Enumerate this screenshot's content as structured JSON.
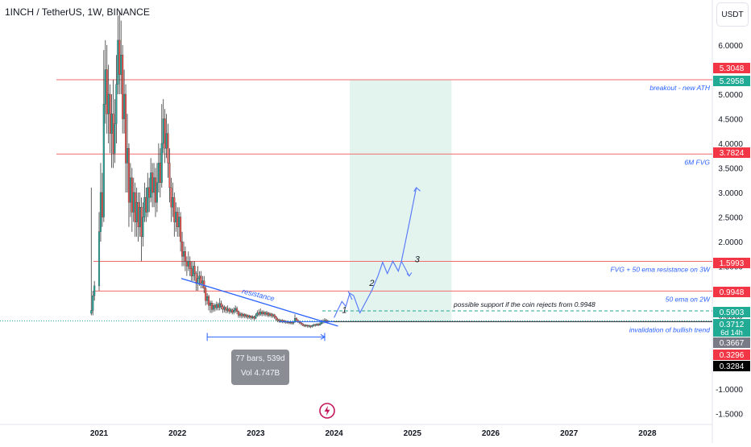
{
  "header": {
    "title": "1INCH / TetherUS, 1W, BINANCE",
    "currency_label": "USDT"
  },
  "chart_data": {
    "type": "candlestick",
    "symbol": "1INCH / TetherUS",
    "interval": "1W",
    "exchange": "BINANCE",
    "y_ticks": [
      "6.0000",
      "5.5000",
      "5.0000",
      "4.5000",
      "4.0000",
      "3.5000",
      "3.0000",
      "2.5000",
      "2.0000",
      "1.5000",
      "1.0000",
      "0.5000",
      "0.0000",
      "-0.5000",
      "-1.0000",
      "-1.5000"
    ],
    "x_ticks": [
      "2021",
      "2022",
      "2023",
      "2024",
      "2025",
      "2026",
      "2027",
      "2028"
    ],
    "ylim": [
      -1.7,
      6.7
    ],
    "horizontal_levels": [
      {
        "value": 5.2958,
        "label": "breakout - new ATH"
      },
      {
        "value": 3.7824,
        "label": "6M FVG"
      },
      {
        "value": 1.5993,
        "label": "FVG + 50 ema resistance on 3W"
      },
      {
        "value": 0.9948,
        "label": "50 ema on 2W"
      },
      {
        "value": 0.5903,
        "label": "possible support if the coin rejects from 0.9948"
      },
      {
        "value": 0.3712,
        "label": "invalidation of bullish trend"
      }
    ],
    "price_tags": [
      {
        "text": "5.3048",
        "value": 5.3048,
        "color": "#f23645"
      },
      {
        "text": "5.2958",
        "value": 5.2958,
        "color": "#22ab94"
      },
      {
        "text": "3.7824",
        "value": 3.7824,
        "color": "#f23645"
      },
      {
        "text": "1.5993",
        "value": 1.5993,
        "color": "#f23645"
      },
      {
        "text": "0.9948",
        "value": 0.9948,
        "color": "#f23645"
      },
      {
        "text": "0.5903",
        "value": 0.5903,
        "color": "#22ab94"
      },
      {
        "text": "0.3712",
        "value": 0.3712,
        "color": "#22ab94",
        "sub": "6d 14h"
      },
      {
        "text": "0.3667",
        "value": 0.3667,
        "color": "#787b86"
      },
      {
        "text": "0.3296",
        "value": 0.3296,
        "color": "#f23645"
      },
      {
        "text": "0.3284",
        "value": 0.3284,
        "color": "#000000"
      }
    ],
    "resistance_label": "resistance",
    "wave_labels": [
      "1",
      "2",
      "3"
    ],
    "projection_zone": {
      "x_start": 2024.2,
      "x_end": 2025.5
    },
    "measure": {
      "bars_text": "77 bars, 539d",
      "vol_text": "Vol 4.747B"
    },
    "candles": [
      [
        2020.9,
        0.54,
        0.6,
        0.5,
        3.1
      ],
      [
        2020.92,
        0.6,
        0.9,
        0.5,
        1.0
      ],
      [
        2020.94,
        0.9,
        1.1,
        0.8,
        1.2
      ],
      [
        2021.0,
        1.1,
        2.2,
        1.0,
        2.6
      ],
      [
        2021.02,
        2.2,
        3.0,
        2.0,
        3.6
      ],
      [
        2021.04,
        3.0,
        2.5,
        2.3,
        3.4
      ],
      [
        2021.06,
        2.5,
        4.8,
        2.4,
        5.9
      ],
      [
        2021.08,
        4.8,
        5.5,
        4.4,
        6.1
      ],
      [
        2021.1,
        5.5,
        4.6,
        4.2,
        6.0
      ],
      [
        2021.12,
        4.6,
        5.0,
        4.0,
        5.6
      ],
      [
        2021.14,
        5.0,
        4.2,
        3.8,
        5.2
      ],
      [
        2021.16,
        4.2,
        4.6,
        3.5,
        5.0
      ],
      [
        2021.18,
        4.6,
        3.8,
        3.5,
        5.3
      ],
      [
        2021.2,
        3.8,
        4.4,
        3.6,
        4.9
      ],
      [
        2021.22,
        4.4,
        5.2,
        4.0,
        5.8
      ],
      [
        2021.24,
        5.2,
        6.1,
        5.0,
        6.6
      ],
      [
        2021.26,
        6.1,
        5.4,
        5.0,
        6.7
      ],
      [
        2021.28,
        5.4,
        5.8,
        5.0,
        6.5
      ],
      [
        2021.3,
        5.8,
        4.5,
        4.2,
        6.0
      ],
      [
        2021.32,
        4.5,
        5.0,
        4.2,
        5.5
      ],
      [
        2021.34,
        5.0,
        3.6,
        3.0,
        5.2
      ],
      [
        2021.36,
        3.6,
        3.9,
        3.0,
        4.6
      ],
      [
        2021.38,
        3.9,
        2.8,
        2.3,
        4.0
      ],
      [
        2021.4,
        2.8,
        3.3,
        2.5,
        3.6
      ],
      [
        2021.42,
        3.3,
        2.6,
        2.2,
        3.5
      ],
      [
        2021.44,
        2.6,
        3.0,
        2.4,
        3.3
      ],
      [
        2021.46,
        3.0,
        2.4,
        2.1,
        3.2
      ],
      [
        2021.48,
        2.4,
        2.8,
        2.1,
        3.1
      ],
      [
        2021.5,
        2.8,
        2.3,
        2.0,
        3.0
      ],
      [
        2021.52,
        2.3,
        2.7,
        2.1,
        3.0
      ],
      [
        2021.54,
        2.7,
        2.1,
        1.6,
        2.9
      ],
      [
        2021.56,
        2.1,
        2.5,
        1.9,
        2.8
      ],
      [
        2021.58,
        2.5,
        2.9,
        2.4,
        3.2
      ],
      [
        2021.6,
        2.9,
        2.6,
        2.4,
        3.1
      ],
      [
        2021.62,
        2.6,
        3.1,
        2.5,
        3.4
      ],
      [
        2021.64,
        3.1,
        2.9,
        2.6,
        3.3
      ],
      [
        2021.66,
        2.9,
        3.4,
        2.8,
        3.7
      ],
      [
        2021.68,
        3.4,
        3.0,
        2.7,
        3.6
      ],
      [
        2021.7,
        3.0,
        3.3,
        2.7,
        3.6
      ],
      [
        2021.72,
        3.3,
        2.8,
        2.5,
        3.5
      ],
      [
        2021.74,
        2.8,
        3.2,
        2.6,
        3.6
      ],
      [
        2021.76,
        3.2,
        3.6,
        3.0,
        4.0
      ],
      [
        2021.78,
        3.6,
        3.2,
        2.9,
        3.9
      ],
      [
        2021.8,
        3.2,
        4.0,
        3.1,
        4.8
      ],
      [
        2021.82,
        4.0,
        4.5,
        3.8,
        4.9
      ],
      [
        2021.84,
        4.5,
        3.9,
        3.6,
        4.7
      ],
      [
        2021.86,
        3.9,
        4.2,
        3.7,
        4.6
      ],
      [
        2021.88,
        4.2,
        3.6,
        3.3,
        4.4
      ],
      [
        2021.9,
        3.6,
        3.1,
        2.8,
        3.9
      ],
      [
        2021.92,
        3.1,
        2.7,
        2.4,
        3.3
      ],
      [
        2021.94,
        2.7,
        2.9,
        2.5,
        3.2
      ],
      [
        2021.96,
        2.9,
        2.4,
        2.1,
        3.0
      ],
      [
        2021.98,
        2.4,
        2.6,
        2.2,
        2.8
      ],
      [
        2022.0,
        2.6,
        2.3,
        2.1,
        2.7
      ],
      [
        2022.02,
        2.3,
        2.5,
        2.1,
        2.7
      ],
      [
        2022.04,
        2.5,
        2.0,
        1.8,
        2.6
      ],
      [
        2022.06,
        2.0,
        1.7,
        1.5,
        2.2
      ],
      [
        2022.08,
        1.7,
        1.8,
        1.5,
        2.0
      ],
      [
        2022.1,
        1.8,
        1.6,
        1.4,
        1.9
      ],
      [
        2022.12,
        1.6,
        1.5,
        1.3,
        1.7
      ],
      [
        2022.14,
        1.5,
        1.6,
        1.4,
        1.8
      ],
      [
        2022.16,
        1.6,
        1.45,
        1.3,
        1.7
      ],
      [
        2022.18,
        1.45,
        1.3,
        1.2,
        1.6
      ],
      [
        2022.2,
        1.3,
        1.5,
        1.2,
        1.6
      ],
      [
        2022.22,
        1.5,
        1.35,
        1.2,
        1.6
      ],
      [
        2022.24,
        1.35,
        1.15,
        1.0,
        1.4
      ],
      [
        2022.26,
        1.15,
        1.25,
        1.0,
        1.5
      ],
      [
        2022.28,
        1.25,
        1.3,
        1.1,
        1.4
      ],
      [
        2022.3,
        1.3,
        1.15,
        1.05,
        1.4
      ],
      [
        2022.32,
        1.15,
        1.2,
        1.05,
        1.3
      ],
      [
        2022.34,
        1.2,
        1.05,
        0.95,
        1.3
      ],
      [
        2022.36,
        1.05,
        0.8,
        0.7,
        1.1
      ],
      [
        2022.38,
        0.8,
        0.88,
        0.72,
        0.95
      ],
      [
        2022.4,
        0.88,
        0.7,
        0.6,
        0.92
      ],
      [
        2022.42,
        0.7,
        0.75,
        0.55,
        0.8
      ],
      [
        2022.44,
        0.75,
        0.62,
        0.55,
        0.8
      ],
      [
        2022.46,
        0.62,
        0.7,
        0.57,
        0.75
      ],
      [
        2022.48,
        0.7,
        0.65,
        0.58,
        0.74
      ],
      [
        2022.5,
        0.65,
        0.72,
        0.6,
        0.78
      ],
      [
        2022.52,
        0.72,
        0.66,
        0.6,
        0.76
      ],
      [
        2022.54,
        0.66,
        0.74,
        0.6,
        0.85
      ],
      [
        2022.56,
        0.74,
        0.68,
        0.62,
        0.8
      ],
      [
        2022.58,
        0.68,
        0.62,
        0.55,
        0.72
      ],
      [
        2022.6,
        0.62,
        0.66,
        0.56,
        0.7
      ],
      [
        2022.62,
        0.66,
        0.6,
        0.54,
        0.68
      ],
      [
        2022.64,
        0.6,
        0.63,
        0.55,
        0.7
      ],
      [
        2022.66,
        0.63,
        0.58,
        0.53,
        0.66
      ],
      [
        2022.68,
        0.58,
        0.61,
        0.54,
        0.65
      ],
      [
        2022.7,
        0.61,
        0.56,
        0.52,
        0.64
      ],
      [
        2022.72,
        0.56,
        0.6,
        0.52,
        0.66
      ],
      [
        2022.74,
        0.6,
        0.64,
        0.55,
        0.7
      ],
      [
        2022.76,
        0.64,
        0.58,
        0.52,
        0.68
      ],
      [
        2022.78,
        0.58,
        0.5,
        0.45,
        0.6
      ],
      [
        2022.8,
        0.5,
        0.53,
        0.45,
        0.57
      ],
      [
        2022.82,
        0.53,
        0.49,
        0.44,
        0.56
      ],
      [
        2022.84,
        0.49,
        0.52,
        0.45,
        0.55
      ],
      [
        2022.86,
        0.52,
        0.48,
        0.44,
        0.54
      ],
      [
        2022.88,
        0.48,
        0.5,
        0.44,
        0.53
      ],
      [
        2022.9,
        0.5,
        0.46,
        0.42,
        0.52
      ],
      [
        2022.92,
        0.46,
        0.49,
        0.43,
        0.51
      ],
      [
        2022.94,
        0.49,
        0.45,
        0.41,
        0.5
      ],
      [
        2022.96,
        0.45,
        0.47,
        0.42,
        0.5
      ],
      [
        2022.98,
        0.47,
        0.44,
        0.4,
        0.49
      ],
      [
        2023.0,
        0.44,
        0.5,
        0.42,
        0.54
      ],
      [
        2023.02,
        0.5,
        0.55,
        0.47,
        0.6
      ],
      [
        2023.04,
        0.55,
        0.52,
        0.48,
        0.62
      ],
      [
        2023.06,
        0.52,
        0.57,
        0.49,
        0.64
      ],
      [
        2023.08,
        0.57,
        0.53,
        0.48,
        0.6
      ],
      [
        2023.1,
        0.53,
        0.56,
        0.49,
        0.6
      ],
      [
        2023.12,
        0.56,
        0.52,
        0.48,
        0.58
      ],
      [
        2023.14,
        0.52,
        0.55,
        0.48,
        0.59
      ],
      [
        2023.16,
        0.55,
        0.5,
        0.46,
        0.57
      ],
      [
        2023.18,
        0.5,
        0.53,
        0.47,
        0.56
      ],
      [
        2023.2,
        0.53,
        0.49,
        0.45,
        0.55
      ],
      [
        2023.22,
        0.49,
        0.51,
        0.45,
        0.54
      ],
      [
        2023.24,
        0.51,
        0.47,
        0.43,
        0.53
      ],
      [
        2023.26,
        0.47,
        0.42,
        0.38,
        0.49
      ],
      [
        2023.28,
        0.42,
        0.4,
        0.36,
        0.45
      ],
      [
        2023.3,
        0.4,
        0.38,
        0.35,
        0.43
      ],
      [
        2023.32,
        0.38,
        0.4,
        0.35,
        0.42
      ],
      [
        2023.34,
        0.4,
        0.37,
        0.34,
        0.42
      ],
      [
        2023.36,
        0.37,
        0.39,
        0.34,
        0.41
      ],
      [
        2023.38,
        0.39,
        0.36,
        0.33,
        0.4
      ],
      [
        2023.4,
        0.36,
        0.37,
        0.33,
        0.39
      ],
      [
        2023.42,
        0.37,
        0.35,
        0.32,
        0.38
      ],
      [
        2023.44,
        0.35,
        0.36,
        0.32,
        0.38
      ],
      [
        2023.46,
        0.36,
        0.34,
        0.31,
        0.37
      ],
      [
        2023.48,
        0.34,
        0.36,
        0.31,
        0.38
      ],
      [
        2023.5,
        0.36,
        0.44,
        0.35,
        0.52
      ],
      [
        2023.52,
        0.44,
        0.4,
        0.36,
        0.46
      ],
      [
        2023.54,
        0.4,
        0.37,
        0.34,
        0.42
      ],
      [
        2023.56,
        0.37,
        0.35,
        0.32,
        0.39
      ],
      [
        2023.58,
        0.35,
        0.33,
        0.3,
        0.36
      ],
      [
        2023.6,
        0.33,
        0.3,
        0.28,
        0.34
      ],
      [
        2023.62,
        0.3,
        0.29,
        0.26,
        0.32
      ],
      [
        2023.64,
        0.29,
        0.3,
        0.26,
        0.32
      ],
      [
        2023.66,
        0.3,
        0.28,
        0.25,
        0.31
      ],
      [
        2023.68,
        0.28,
        0.29,
        0.25,
        0.31
      ],
      [
        2023.7,
        0.29,
        0.27,
        0.24,
        0.3
      ],
      [
        2023.72,
        0.27,
        0.29,
        0.25,
        0.31
      ],
      [
        2023.74,
        0.29,
        0.31,
        0.27,
        0.33
      ],
      [
        2023.76,
        0.31,
        0.3,
        0.27,
        0.33
      ],
      [
        2023.78,
        0.3,
        0.32,
        0.28,
        0.34
      ],
      [
        2023.8,
        0.32,
        0.3,
        0.28,
        0.34
      ],
      [
        2023.82,
        0.3,
        0.33,
        0.29,
        0.36
      ],
      [
        2023.84,
        0.33,
        0.38,
        0.31,
        0.41
      ],
      [
        2023.86,
        0.38,
        0.36,
        0.33,
        0.42
      ],
      [
        2023.88,
        0.36,
        0.4,
        0.34,
        0.44
      ],
      [
        2023.9,
        0.4,
        0.38,
        0.34,
        0.43
      ],
      [
        2023.92,
        0.38,
        0.37,
        0.33,
        0.41
      ]
    ]
  }
}
